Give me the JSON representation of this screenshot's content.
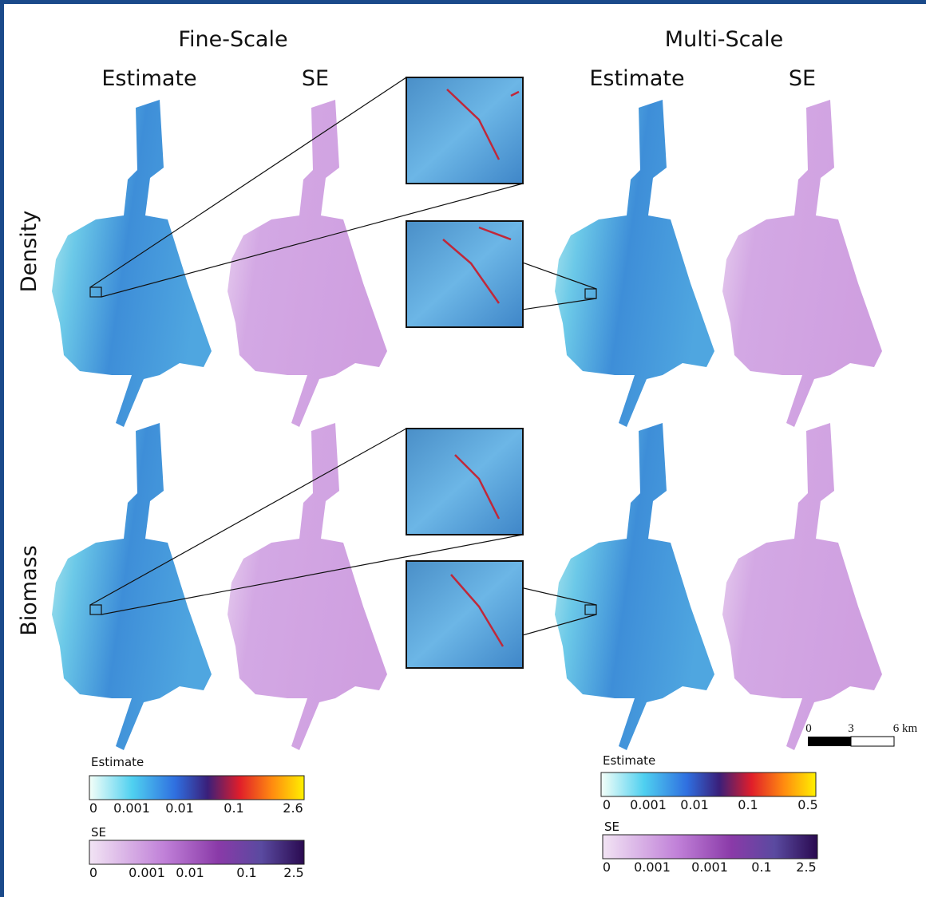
{
  "headers": {
    "fine_scale": "Fine-Scale",
    "multi_scale": "Multi-Scale",
    "columns": [
      "Estimate",
      "SE",
      "Estimate",
      "SE"
    ]
  },
  "rows": [
    "Density",
    "Biomass"
  ],
  "legends": [
    {
      "title": "Estimate",
      "ticks": [
        "0",
        "0.001",
        "0.01",
        "0.1",
        "2.6"
      ]
    },
    {
      "title": "SE",
      "ticks": [
        "0",
        "0.001",
        "0.01",
        "0.1",
        "2.5"
      ]
    },
    {
      "title": "Estimate",
      "ticks": [
        "0",
        "0.001",
        "0.01",
        "0.1",
        "0.5"
      ]
    },
    {
      "title": "SE",
      "ticks": [
        "0",
        "0.001",
        "0.001",
        "0.1",
        "2.5"
      ]
    }
  ],
  "scale_bar": {
    "labels": [
      "0",
      "3",
      "6 km"
    ]
  }
}
